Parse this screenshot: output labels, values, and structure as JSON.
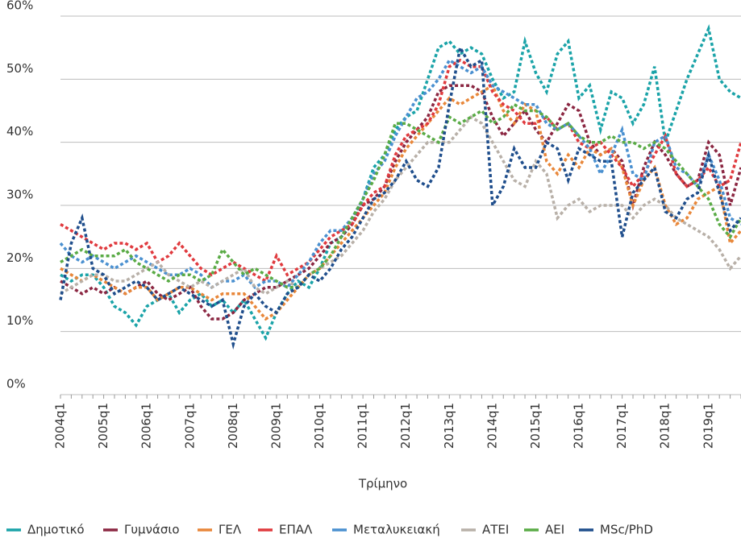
{
  "chart_data": {
    "type": "line",
    "x_label": "Τρίμηνο",
    "categories": [
      "2004q1",
      null,
      null,
      null,
      "2005q1",
      null,
      null,
      null,
      "2006q1",
      null,
      null,
      null,
      "2007q1",
      null,
      null,
      null,
      "2008q1",
      null,
      null,
      null,
      "2009q1",
      null,
      null,
      null,
      "2010q1",
      null,
      null,
      null,
      "2011q1",
      null,
      null,
      null,
      "2012q1",
      null,
      null,
      null,
      "2013q1",
      null,
      null,
      null,
      "2014q1",
      null,
      null,
      null,
      "2015q1",
      null,
      null,
      null,
      "2016q1",
      null,
      null,
      null,
      "2017q1",
      null,
      null,
      null,
      "2018q1",
      null,
      null,
      null,
      "2019q1",
      null,
      null,
      null
    ],
    "ylim": [
      0,
      60
    ],
    "yticks": [
      {
        "value": 0,
        "label": "0%"
      },
      {
        "value": 10,
        "label": "10%"
      },
      {
        "value": 20,
        "label": "20%"
      },
      {
        "value": 30,
        "label": "30%"
      },
      {
        "value": 40,
        "label": "40%"
      },
      {
        "value": 50,
        "label": "50%"
      },
      {
        "value": 60,
        "label": "60%"
      }
    ],
    "grid": true,
    "legend": "bottom",
    "series": [
      {
        "name": "Δημοτικό",
        "color": "#1aa3a8",
        "values": [
          19,
          18,
          19,
          19,
          17,
          14,
          13,
          11,
          14,
          15,
          16,
          13,
          15,
          16,
          14,
          15,
          13,
          15,
          12,
          9,
          13,
          16,
          18,
          17,
          20,
          24,
          25,
          27,
          31,
          36,
          38,
          42,
          44,
          45,
          50,
          55,
          56,
          54,
          55,
          54,
          50,
          47,
          48,
          56,
          51,
          48,
          54,
          56,
          47,
          49,
          42,
          48,
          47,
          43,
          46,
          52,
          40,
          45,
          50,
          54,
          58,
          50,
          48,
          47
        ]
      },
      {
        "name": "Γυμνάσιο",
        "color": "#8b2742",
        "values": [
          18,
          17,
          16,
          17,
          16,
          17,
          16,
          17,
          18,
          16,
          15,
          16,
          17,
          14,
          12,
          12,
          13,
          15,
          16,
          17,
          17,
          18,
          19,
          20,
          22,
          24,
          25,
          27,
          30,
          31,
          33,
          37,
          40,
          42,
          44,
          48,
          49,
          49,
          49,
          48,
          44,
          41,
          43,
          45,
          42,
          40,
          43,
          46,
          45,
          40,
          38,
          39,
          37,
          30,
          36,
          40,
          38,
          35,
          33,
          34,
          40,
          38,
          30,
          36
        ]
      },
      {
        "name": "ΓΕΛ",
        "color": "#e8873a",
        "values": [
          20,
          19,
          18,
          19,
          18,
          17,
          16,
          17,
          17,
          15,
          16,
          17,
          17,
          16,
          15,
          16,
          16,
          16,
          14,
          12,
          13,
          15,
          17,
          19,
          20,
          22,
          24,
          26,
          28,
          30,
          32,
          36,
          39,
          41,
          43,
          45,
          47,
          46,
          47,
          48,
          49,
          45,
          43,
          46,
          45,
          37,
          35,
          38,
          36,
          39,
          38,
          39,
          36,
          30,
          34,
          36,
          30,
          27,
          28,
          31,
          32,
          33,
          24,
          26
        ]
      },
      {
        "name": "ΕΠΑΛ",
        "color": "#e03a3e",
        "values": [
          27,
          26,
          25,
          24,
          23,
          24,
          24,
          23,
          24,
          21,
          22,
          24,
          22,
          20,
          19,
          20,
          21,
          20,
          19,
          18,
          22,
          19,
          20,
          21,
          23,
          25,
          26,
          27,
          30,
          32,
          33,
          38,
          41,
          42,
          43,
          46,
          52,
          53,
          52,
          52,
          48,
          46,
          45,
          43,
          43,
          44,
          42,
          43,
          40,
          39,
          40,
          38,
          36,
          33,
          35,
          38,
          41,
          35,
          33,
          34,
          36,
          33,
          34,
          40
        ]
      },
      {
        "name": "Μεταλυκειακή",
        "color": "#4a90d0",
        "values": [
          24,
          22,
          21,
          22,
          21,
          20,
          21,
          22,
          21,
          20,
          19,
          19,
          20,
          19,
          17,
          18,
          18,
          19,
          17,
          18,
          18,
          17,
          19,
          21,
          24,
          26,
          26,
          28,
          31,
          35,
          37,
          41,
          44,
          47,
          48,
          50,
          53,
          52,
          51,
          52,
          49,
          48,
          47,
          46,
          46,
          43,
          42,
          43,
          41,
          39,
          35,
          38,
          42,
          35,
          34,
          40,
          41,
          36,
          35,
          33,
          38,
          34,
          28,
          27
        ]
      },
      {
        "name": "ΑΤΕΙ",
        "color": "#b8b0a8",
        "values": [
          16,
          17,
          18,
          19,
          19,
          18,
          18,
          19,
          20,
          21,
          19,
          18,
          17,
          18,
          17,
          18,
          19,
          20,
          17,
          16,
          17,
          18,
          17,
          19,
          20,
          21,
          22,
          24,
          26,
          29,
          31,
          34,
          36,
          38,
          40,
          40,
          40,
          42,
          44,
          43,
          40,
          37,
          34,
          33,
          37,
          35,
          28,
          30,
          31,
          29,
          30,
          30,
          30,
          28,
          30,
          31,
          30,
          28,
          27,
          26,
          25,
          23,
          20,
          22
        ]
      },
      {
        "name": "ΑΕΙ",
        "color": "#5aab46",
        "values": [
          21,
          22,
          23,
          22,
          22,
          22,
          23,
          21,
          20,
          19,
          18,
          19,
          19,
          18,
          19,
          23,
          21,
          19,
          20,
          19,
          18,
          17,
          17,
          19,
          20,
          22,
          25,
          28,
          31,
          34,
          38,
          43,
          43,
          42,
          41,
          40,
          44,
          43,
          44,
          45,
          43,
          44,
          46,
          45,
          45,
          44,
          42,
          43,
          41,
          40,
          40,
          41,
          40,
          40,
          39,
          40,
          39,
          37,
          35,
          33,
          31,
          27,
          25,
          28
        ]
      },
      {
        "name": "MSc/PhD",
        "color": "#1f4e8c",
        "values": [
          15,
          24,
          28,
          20,
          19,
          16,
          17,
          18,
          17,
          15,
          16,
          17,
          16,
          15,
          14,
          15,
          8,
          14,
          16,
          14,
          13,
          16,
          17,
          19,
          18,
          20,
          23,
          25,
          28,
          31,
          32,
          34,
          37,
          34,
          33,
          36,
          46,
          55,
          52,
          53,
          30,
          33,
          39,
          36,
          36,
          40,
          39,
          34,
          39,
          38,
          37,
          37,
          25,
          32,
          34,
          36,
          29,
          28,
          31,
          32,
          38,
          32,
          26,
          28
        ]
      }
    ]
  }
}
